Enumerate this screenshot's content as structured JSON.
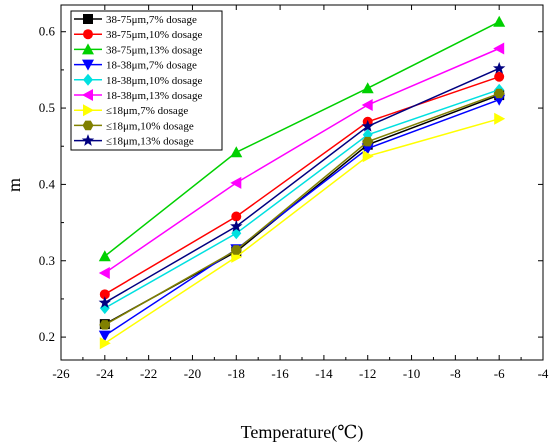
{
  "chart_data": {
    "type": "line",
    "xlabel": "Temperature(℃)",
    "ylabel": "m",
    "xlim": [
      -26,
      -4
    ],
    "ylim": [
      0.17,
      0.635
    ],
    "x_ticks": [
      -26,
      -24,
      -22,
      -20,
      -18,
      -16,
      -14,
      -12,
      -10,
      -8,
      -6,
      -4
    ],
    "y_ticks": [
      0.2,
      0.3,
      0.4,
      0.5,
      0.6
    ],
    "y_tick_labels": [
      "0.2",
      "0.3",
      "0.4",
      "0.5",
      "0.6"
    ],
    "legend_position": "top-left",
    "x": [
      -24,
      -18,
      -12,
      -6
    ],
    "series": [
      {
        "name": "38-75μm,7% dosage",
        "values": [
          0.217,
          0.312,
          0.452,
          0.517
        ],
        "color": "#000000",
        "marker": "square"
      },
      {
        "name": "38-75μm,10% dosage",
        "values": [
          0.256,
          0.358,
          0.482,
          0.541
        ],
        "color": "#ff0000",
        "marker": "circle"
      },
      {
        "name": "38-75μm,13% dosage",
        "values": [
          0.306,
          0.442,
          0.526,
          0.613
        ],
        "color": "#00d000",
        "marker": "triangle-up"
      },
      {
        "name": "18-38μm,7% dosage",
        "values": [
          0.202,
          0.315,
          0.447,
          0.511
        ],
        "color": "#0000ff",
        "marker": "triangle-down"
      },
      {
        "name": "18-38μm,10% dosage",
        "values": [
          0.238,
          0.336,
          0.465,
          0.524
        ],
        "color": "#00e0e0",
        "marker": "diamond"
      },
      {
        "name": "18-38μm,13% dosage",
        "values": [
          0.284,
          0.402,
          0.504,
          0.578
        ],
        "color": "#ff00ff",
        "marker": "triangle-left"
      },
      {
        "name": "≤18μm,7% dosage",
        "values": [
          0.192,
          0.305,
          0.437,
          0.486
        ],
        "color": "#ffff00",
        "marker": "triangle-right"
      },
      {
        "name": "≤18μm,10% dosage",
        "values": [
          0.216,
          0.314,
          0.456,
          0.519
        ],
        "color": "#808000",
        "marker": "hexagon"
      },
      {
        "name": "≤18μm,13% dosage",
        "values": [
          0.245,
          0.345,
          0.476,
          0.552
        ],
        "color": "#000080",
        "marker": "star"
      }
    ]
  }
}
